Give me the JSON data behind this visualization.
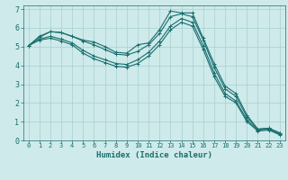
{
  "background_color": "#ceeaea",
  "grid_color": "#a8d0d0",
  "line_color": "#1a6e6e",
  "xlabel": "Humidex (Indice chaleur)",
  "xlim": [
    -0.5,
    23.5
  ],
  "ylim": [
    0,
    7.2
  ],
  "xticks": [
    0,
    1,
    2,
    3,
    4,
    5,
    6,
    7,
    8,
    9,
    10,
    11,
    12,
    13,
    14,
    15,
    16,
    17,
    18,
    19,
    20,
    21,
    22,
    23
  ],
  "yticks": [
    0,
    1,
    2,
    3,
    4,
    5,
    6,
    7
  ],
  "series": [
    [
      5.05,
      5.5,
      5.8,
      5.75,
      5.55,
      5.35,
      5.25,
      5.0,
      4.7,
      4.65,
      5.1,
      5.2,
      5.9,
      6.9,
      6.8,
      6.8,
      5.45,
      4.1,
      2.9,
      2.5,
      1.35,
      0.6,
      0.65,
      0.4
    ],
    [
      5.05,
      5.55,
      5.8,
      5.75,
      5.55,
      5.3,
      5.1,
      4.85,
      4.6,
      4.55,
      4.75,
      5.1,
      5.7,
      6.6,
      6.75,
      6.6,
      5.35,
      3.9,
      2.75,
      2.35,
      1.25,
      0.6,
      0.65,
      0.4
    ],
    [
      5.05,
      5.4,
      5.55,
      5.4,
      5.2,
      4.8,
      4.5,
      4.3,
      4.1,
      4.05,
      4.3,
      4.7,
      5.3,
      6.1,
      6.5,
      6.3,
      5.05,
      3.6,
      2.5,
      2.1,
      1.1,
      0.55,
      0.6,
      0.35
    ],
    [
      5.05,
      5.35,
      5.45,
      5.3,
      5.1,
      4.65,
      4.35,
      4.15,
      3.95,
      3.9,
      4.1,
      4.5,
      5.1,
      5.9,
      6.3,
      6.1,
      4.85,
      3.4,
      2.35,
      2.0,
      1.0,
      0.5,
      0.55,
      0.3
    ]
  ]
}
